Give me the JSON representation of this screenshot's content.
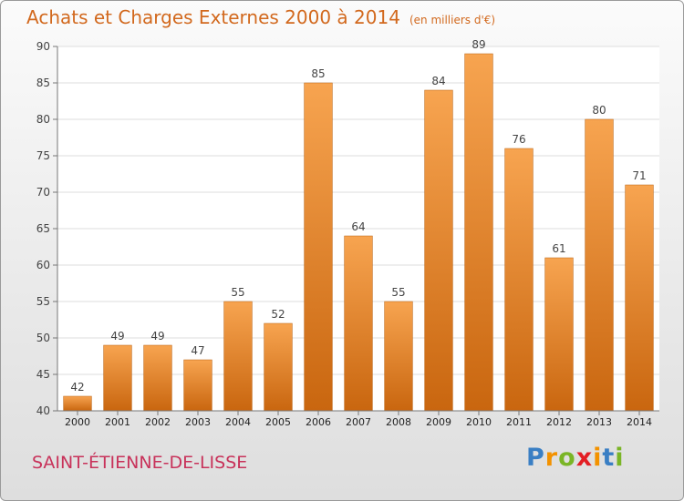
{
  "header": {
    "title": "Achats et Charges Externes 2000 à 2014",
    "subtitle": "(en milliers d'€)"
  },
  "footer": {
    "commune": "SAINT-ÉTIENNE-DE-LISSE",
    "logo_letters": [
      "P",
      "r",
      "o",
      "x",
      "i",
      "t",
      "i"
    ],
    "logo_colors": [
      "#3a7fc4",
      "#f39200",
      "#7ab526",
      "#e31e24",
      "#f39200",
      "#3a7fc4",
      "#7ab526"
    ]
  },
  "colors": {
    "bar_top": "#f7a450",
    "bar_bottom": "#c9660f",
    "plot_bg": "#ffffff",
    "grid": "#dddddd"
  },
  "chart_data": {
    "type": "bar",
    "title": "Achats et Charges Externes 2000 à 2014",
    "subtitle": "(en milliers d'€)",
    "categories": [
      "2000",
      "2001",
      "2002",
      "2003",
      "2004",
      "2005",
      "2006",
      "2007",
      "2008",
      "2009",
      "2010",
      "2011",
      "2012",
      "2013",
      "2014"
    ],
    "values": [
      42,
      49,
      49,
      47,
      55,
      52,
      85,
      64,
      55,
      84,
      89,
      76,
      61,
      80,
      71
    ],
    "ylim": [
      40,
      90
    ],
    "yticks": [
      40,
      45,
      50,
      55,
      60,
      65,
      70,
      75,
      80,
      85,
      90
    ],
    "grid": true,
    "xlabel": "",
    "ylabel": ""
  }
}
